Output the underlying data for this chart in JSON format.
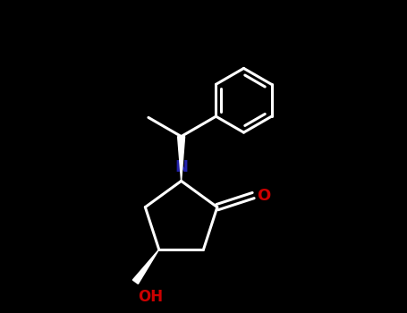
{
  "background_color": "#000000",
  "bond_color": "#ffffff",
  "N_color": "#2222aa",
  "O_color": "#cc0000",
  "line_width": 2.2,
  "figsize": [
    4.55,
    3.5
  ],
  "dpi": 100,
  "xlim": [
    -2.5,
    4.5
  ],
  "ylim": [
    -2.5,
    4.5
  ],
  "N_label": "N",
  "O_label": "O",
  "OH_label": "OH",
  "N_fontsize": 13,
  "O_fontsize": 13,
  "OH_fontsize": 12
}
